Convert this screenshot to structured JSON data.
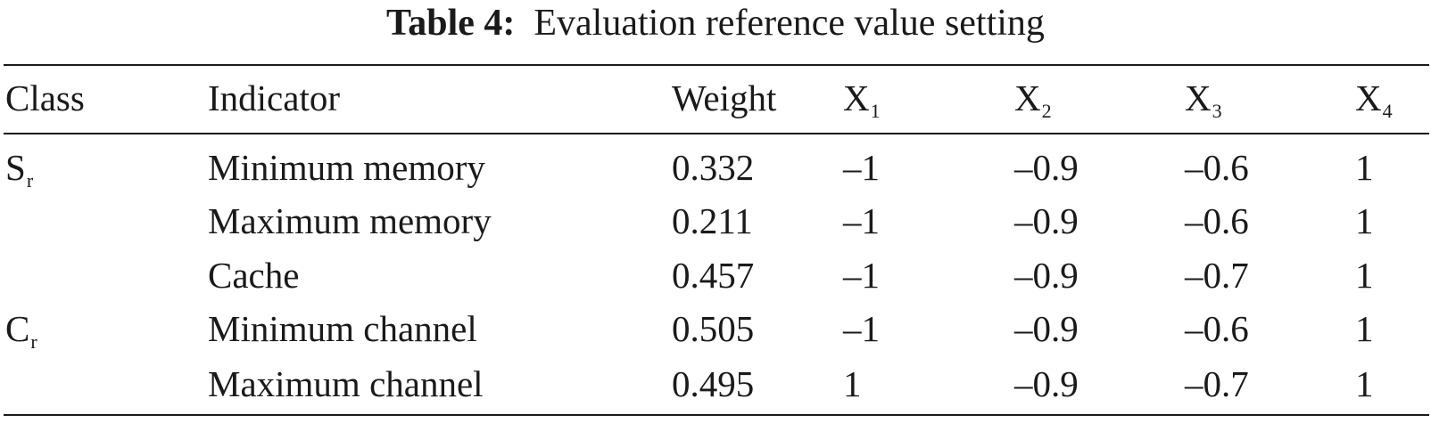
{
  "caption": {
    "label": "Table 4:",
    "text": "Evaluation reference value setting"
  },
  "header": {
    "class": "Class",
    "indicator": "Indicator",
    "weight": "Weight",
    "x1": {
      "base": "X",
      "sub": "1"
    },
    "x2": {
      "base": "X",
      "sub": "2"
    },
    "x3": {
      "base": "X",
      "sub": "3"
    },
    "x4": {
      "base": "X",
      "sub": "4"
    }
  },
  "rows": [
    {
      "class_base": "S",
      "class_sub": "r",
      "indicator": "Minimum memory",
      "weight": "0.332",
      "x1": "–1",
      "x2": "–0.9",
      "x3": "–0.6",
      "x4": "1"
    },
    {
      "class_base": "",
      "class_sub": "",
      "indicator": "Maximum memory",
      "weight": "0.211",
      "x1": "–1",
      "x2": "–0.9",
      "x3": "–0.6",
      "x4": "1"
    },
    {
      "class_base": "",
      "class_sub": "",
      "indicator": "Cache",
      "weight": "0.457",
      "x1": "–1",
      "x2": "–0.9",
      "x3": "–0.7",
      "x4": "1"
    },
    {
      "class_base": "C",
      "class_sub": "r",
      "indicator": "Minimum channel",
      "weight": "0.505",
      "x1": "–1",
      "x2": "–0.9",
      "x3": "–0.6",
      "x4": "1"
    },
    {
      "class_base": "",
      "class_sub": "",
      "indicator": "Maximum channel",
      "weight": "0.495",
      "x1": "1",
      "x2": "–0.9",
      "x3": "–0.7",
      "x4": "1"
    }
  ]
}
